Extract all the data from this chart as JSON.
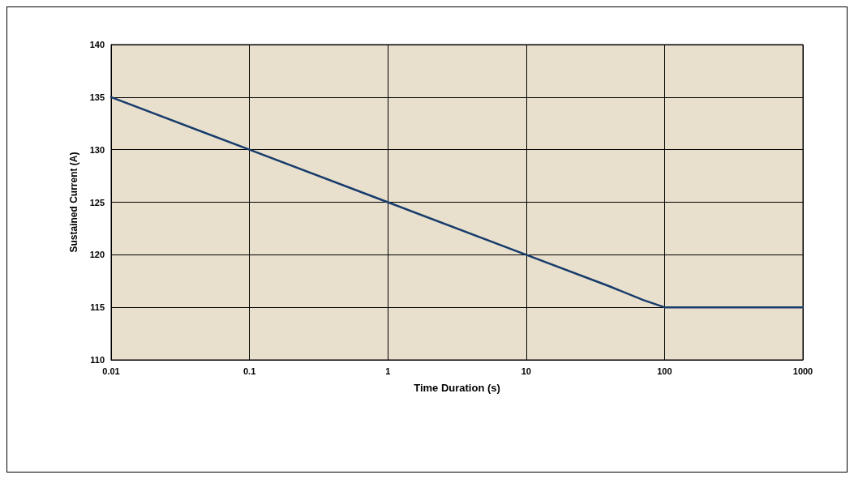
{
  "chart_data": {
    "type": "line",
    "xlabel": "Time Duration (s)",
    "ylabel": "Sustained Current (A)",
    "x": [
      0.01,
      0.1,
      1,
      10,
      40,
      70,
      100,
      120,
      1000
    ],
    "series": [
      {
        "color": "#163c6b",
        "values": [
          135,
          130,
          125,
          120,
          117,
          115.7,
          115,
          115,
          115
        ]
      }
    ],
    "log": "x",
    "xlim": [
      0.01,
      1000
    ],
    "xticks": [
      0.01,
      0.1,
      1,
      10,
      100,
      1000
    ],
    "ylim": [
      110,
      140
    ],
    "yticks": [
      110,
      115,
      120,
      125,
      130,
      135,
      140
    ],
    "grid": true,
    "marker": "none",
    "line_style": "solid"
  }
}
